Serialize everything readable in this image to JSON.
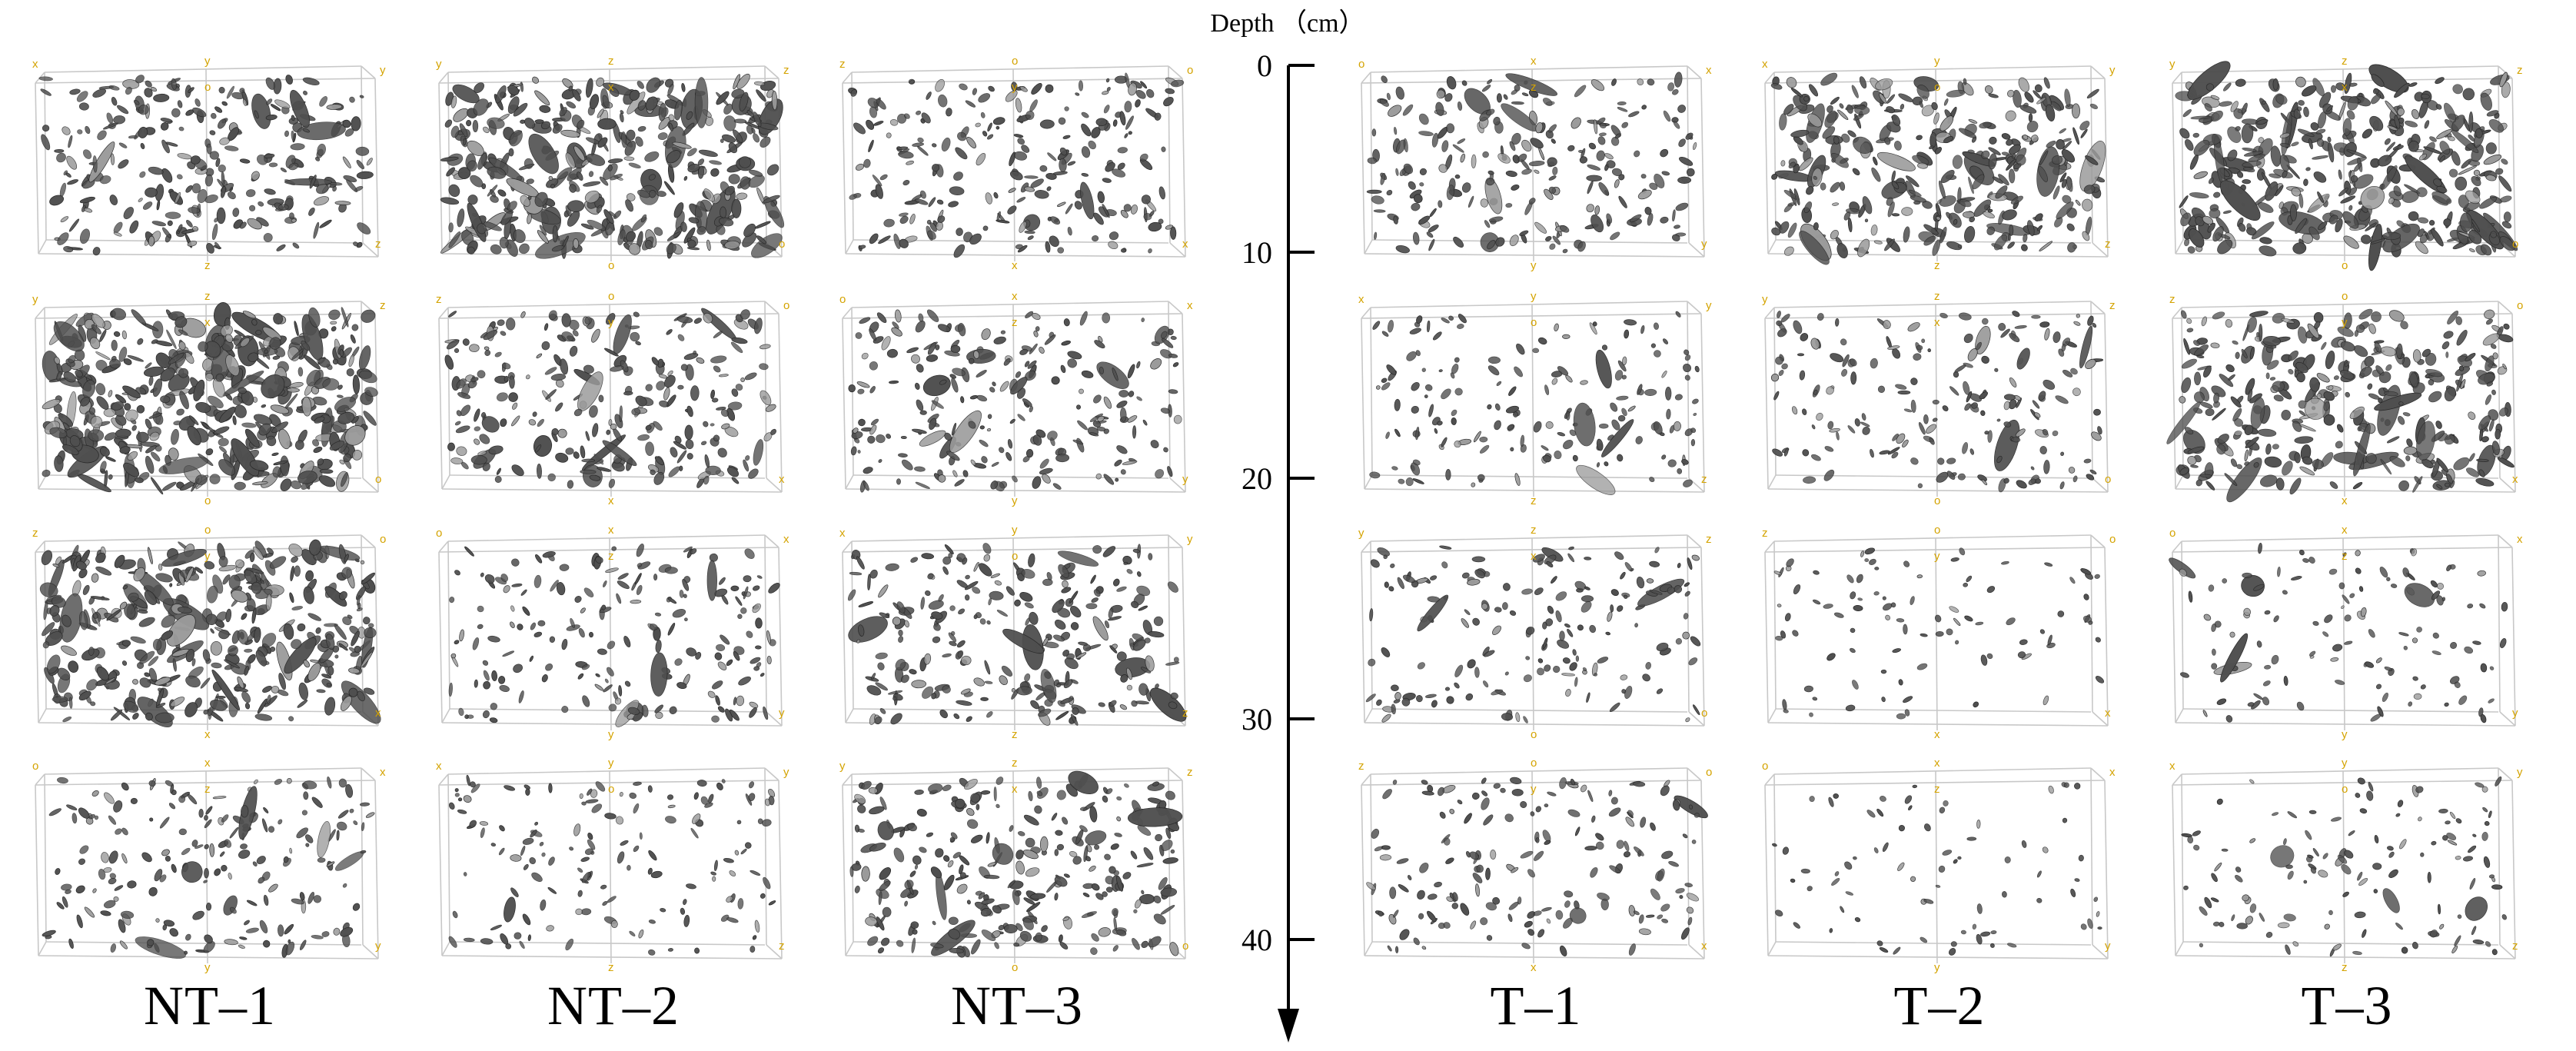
{
  "depth_axis": {
    "title": "Depth （cm）",
    "ticks": [
      "0",
      "10",
      "20",
      "30",
      "40"
    ]
  },
  "columns": [
    {
      "label": "NT–1"
    },
    {
      "label": "NT–2"
    },
    {
      "label": "NT–3"
    },
    {
      "label": "T–1"
    },
    {
      "label": "T–2"
    },
    {
      "label": "T–3"
    }
  ],
  "axis_letters": [
    "x",
    "y",
    "z",
    "o"
  ],
  "colors": {
    "pore": "#4f4f4f",
    "pore_light": "#9a9a9a",
    "box_line": "#c8c8c8",
    "axis_label": "#d4a300"
  },
  "panel_density": [
    [
      0.55,
      0.85,
      0.45
    ],
    [
      0.95,
      0.5,
      0.45
    ],
    [
      0.8,
      0.35,
      0.5
    ],
    [
      0.35,
      0.25,
      0.55
    ],
    [
      0.45,
      0.7,
      0.85
    ],
    [
      0.3,
      0.35,
      0.7
    ],
    [
      0.3,
      0.12,
      0.18
    ],
    [
      0.3,
      0.08,
      0.2
    ]
  ]
}
